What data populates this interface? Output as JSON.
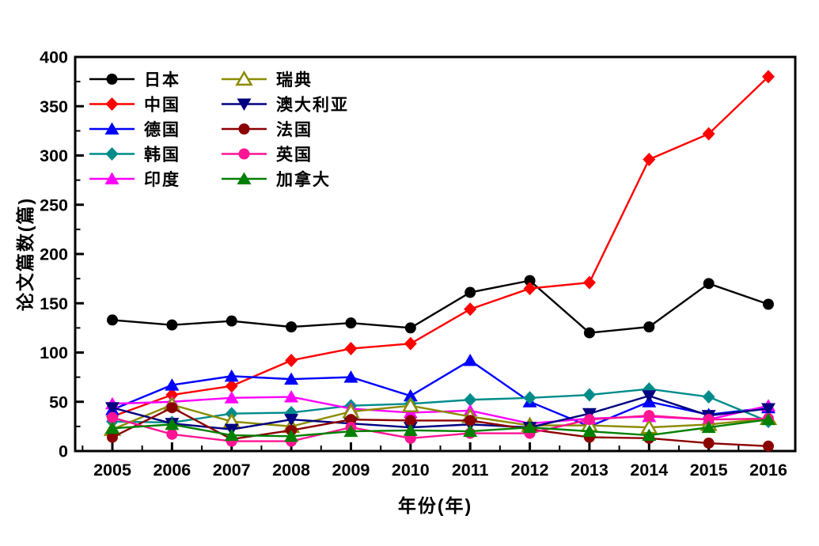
{
  "chart_data": {
    "type": "line",
    "title": "",
    "xlabel": "年份(年)",
    "ylabel": "论文篇数(篇)",
    "x": [
      2005,
      2006,
      2007,
      2008,
      2009,
      2010,
      2011,
      2012,
      2013,
      2014,
      2015,
      2016
    ],
    "ylim": [
      0,
      400
    ],
    "ytick_step": 50,
    "yminor_step": 25,
    "grid": false,
    "legend_position": "top-left-inside-two-columns-no-border",
    "axis_color": "#000000",
    "series": [
      {
        "id": "japan",
        "name": "日本",
        "color": "#000000",
        "marker": "circle",
        "values": [
          133,
          128,
          132,
          126,
          130,
          125,
          161,
          173,
          120,
          126,
          170,
          149
        ]
      },
      {
        "id": "china",
        "name": "中国",
        "color": "#FF0000",
        "marker": "diamond",
        "values": [
          35,
          57,
          66,
          92,
          104,
          109,
          144,
          165,
          171,
          296,
          322,
          380
        ]
      },
      {
        "id": "germany",
        "name": "德国",
        "color": "#0000FF",
        "marker": "triangle-up",
        "values": [
          42,
          67,
          76,
          73,
          75,
          56,
          92,
          50,
          25,
          50,
          37,
          44
        ]
      },
      {
        "id": "korea",
        "name": "韩国",
        "color": "#008B8B",
        "marker": "diamond",
        "values": [
          30,
          29,
          38,
          39,
          46,
          48,
          52,
          54,
          57,
          63,
          55,
          30
        ]
      },
      {
        "id": "india",
        "name": "印度",
        "color": "#FF00FF",
        "marker": "triangle-up",
        "values": [
          48,
          50,
          54,
          55,
          43,
          39,
          41,
          28,
          33,
          35,
          32,
          46
        ]
      },
      {
        "id": "sweden",
        "name": "瑞典",
        "color": "#8B8B00",
        "marker": "triangle-up-open",
        "values": [
          22,
          47,
          30,
          25,
          40,
          46,
          35,
          26,
          26,
          24,
          27,
          33
        ]
      },
      {
        "id": "australia",
        "name": "澳大利亚",
        "color": "#000080",
        "marker": "triangle-down",
        "values": [
          44,
          28,
          22,
          32,
          28,
          24,
          27,
          24,
          38,
          56,
          36,
          43
        ]
      },
      {
        "id": "france",
        "name": "法国",
        "color": "#8B0000",
        "marker": "circle",
        "values": [
          14,
          44,
          12,
          21,
          32,
          31,
          31,
          22,
          14,
          13,
          8,
          5
        ]
      },
      {
        "id": "uk",
        "name": "英国",
        "color": "#FF1493",
        "marker": "circle",
        "values": [
          34,
          17,
          10,
          10,
          24,
          13,
          18,
          18,
          32,
          36,
          32,
          33
        ]
      },
      {
        "id": "canada",
        "name": "加拿大",
        "color": "#008000",
        "marker": "triangle-up",
        "values": [
          23,
          27,
          16,
          15,
          20,
          21,
          20,
          24,
          20,
          16,
          24,
          32
        ]
      }
    ],
    "legend_columns": [
      [
        "japan",
        "china",
        "germany",
        "korea",
        "india"
      ],
      [
        "sweden",
        "australia",
        "france",
        "uk",
        "canada"
      ]
    ]
  }
}
